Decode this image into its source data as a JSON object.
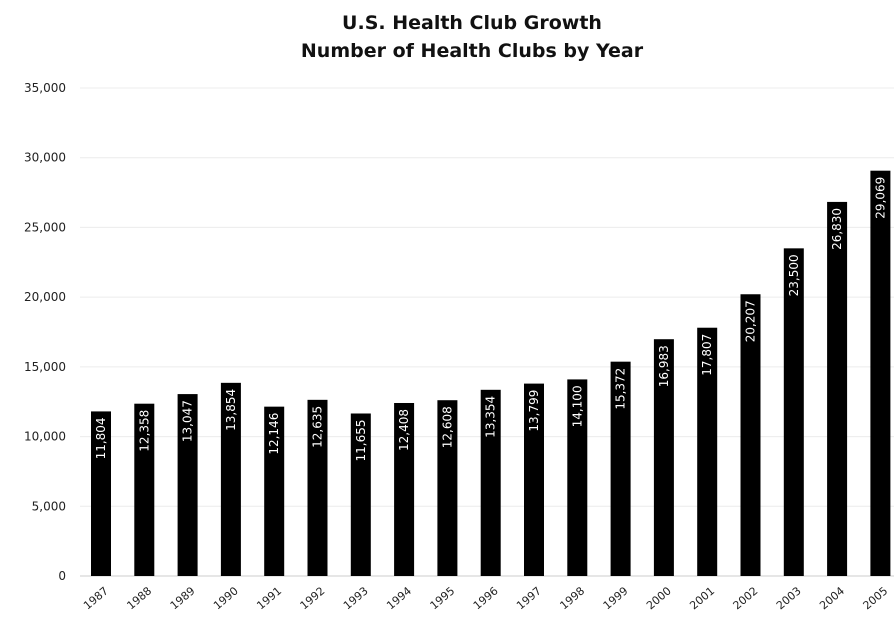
{
  "chart_data": {
    "type": "bar",
    "title": "U.S. Health Club Growth",
    "subtitle": "Number of Health Clubs by Year",
    "xlabel": "",
    "ylabel": "",
    "ylim": [
      0,
      35000
    ],
    "yticks": [
      "0",
      "5,000",
      "10,000",
      "15,000",
      "20,000",
      "25,000",
      "30,000",
      "35,000"
    ],
    "grid": true,
    "legend": "none",
    "bar_color": "#000000",
    "categories": [
      "1987",
      "1988",
      "1989",
      "1990",
      "1991",
      "1992",
      "1993",
      "1994",
      "1995",
      "1996",
      "1997",
      "1998",
      "1999",
      "2000",
      "2001",
      "2002",
      "2003",
      "2004",
      "2005"
    ],
    "values": [
      11804,
      12358,
      13047,
      13854,
      12146,
      12635,
      11655,
      12408,
      12608,
      13354,
      13799,
      14100,
      15372,
      16983,
      17807,
      20207,
      23500,
      26830,
      29069
    ],
    "labels": [
      "11,804",
      "12,358",
      "13,047",
      "13,854",
      "12,146",
      "12,635",
      "11,655",
      "12,408",
      "12,608",
      "13,354",
      "13,799",
      "14,100",
      "15,372",
      "16,983",
      "17,807",
      "20,207",
      "23,500",
      "26,830",
      "29,069"
    ]
  }
}
